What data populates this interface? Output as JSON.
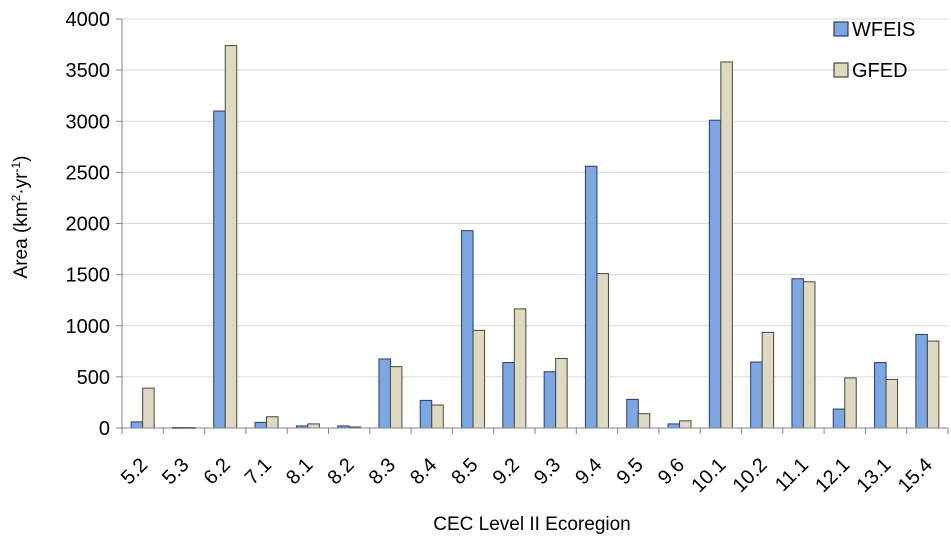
{
  "chart_data": {
    "type": "bar",
    "title": "",
    "xlabel": "CEC Level II Ecoregion",
    "ylabel_main": "Area  (km",
    "ylabel_sup1": "2",
    "ylabel_mid": "·yr",
    "ylabel_sup2": "-1",
    "ylabel_end": ")",
    "ylim": [
      0,
      4000
    ],
    "yticks": [
      0,
      500,
      1000,
      1500,
      2000,
      2500,
      3000,
      3500,
      4000
    ],
    "grid": true,
    "legend_position": "top-right",
    "categories": [
      "5.2",
      "5.3",
      "6.2",
      "7.1",
      "8.1",
      "8.2",
      "8.3",
      "8.4",
      "8.5",
      "9.2",
      "9.3",
      "9.4",
      "9.5",
      "9.6",
      "10.1",
      "10.2",
      "11.1",
      "12.1",
      "13.1",
      "15.4"
    ],
    "series": [
      {
        "name": "WFEIS",
        "color": "#7ea6e0",
        "edge": "#1f3d7a",
        "values": [
          60,
          5,
          3100,
          55,
          20,
          20,
          675,
          270,
          1930,
          640,
          550,
          2560,
          280,
          40,
          3010,
          645,
          1460,
          185,
          640,
          915
        ]
      },
      {
        "name": "GFED",
        "color": "#ddd9c3",
        "edge": "#4a4636",
        "values": [
          390,
          5,
          3740,
          110,
          40,
          10,
          600,
          225,
          955,
          1165,
          680,
          1510,
          140,
          70,
          3580,
          935,
          1430,
          490,
          475,
          850
        ]
      }
    ]
  }
}
